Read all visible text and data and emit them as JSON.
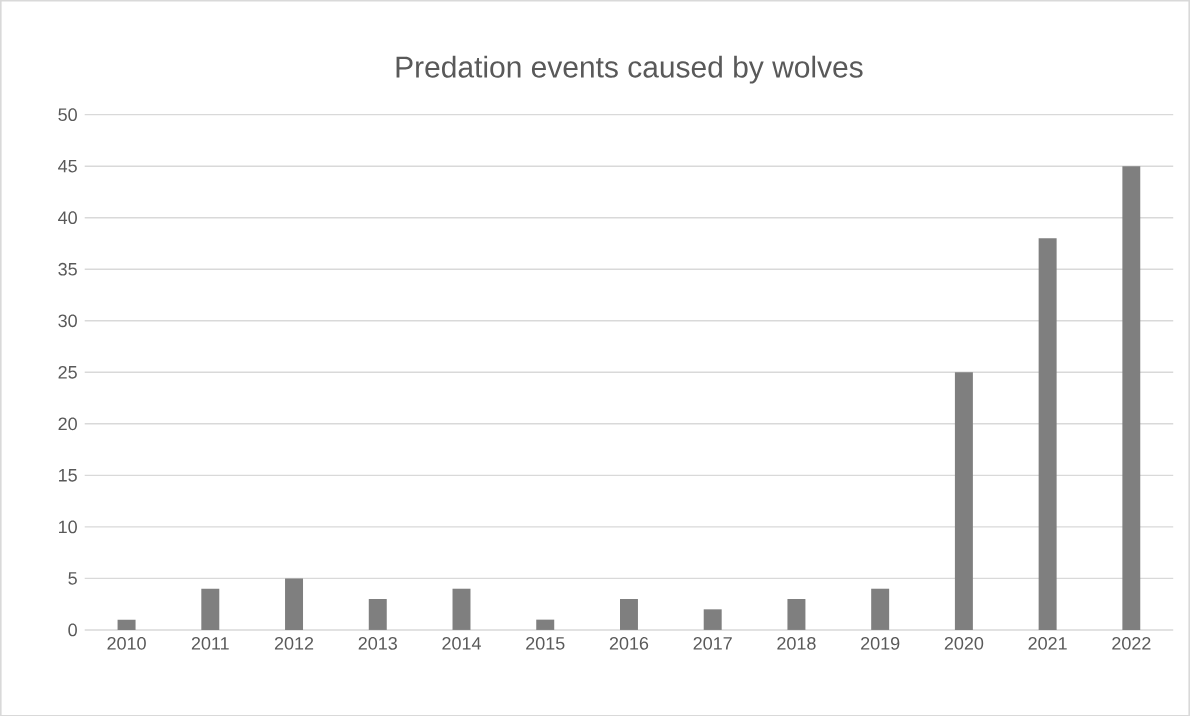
{
  "chart_data": {
    "type": "bar",
    "title": "Predation events caused by wolves",
    "categories": [
      "2010",
      "2011",
      "2012",
      "2013",
      "2014",
      "2015",
      "2016",
      "2017",
      "2018",
      "2019",
      "2020",
      "2021",
      "2022"
    ],
    "values": [
      1,
      4,
      5,
      3,
      4,
      1,
      3,
      2,
      3,
      4,
      25,
      38,
      45
    ],
    "color": "#7f7f7f",
    "ylim": [
      0,
      50
    ],
    "yticks": [
      0,
      5,
      10,
      15,
      20,
      25,
      30,
      35,
      40,
      45,
      50
    ],
    "grid": "y"
  }
}
